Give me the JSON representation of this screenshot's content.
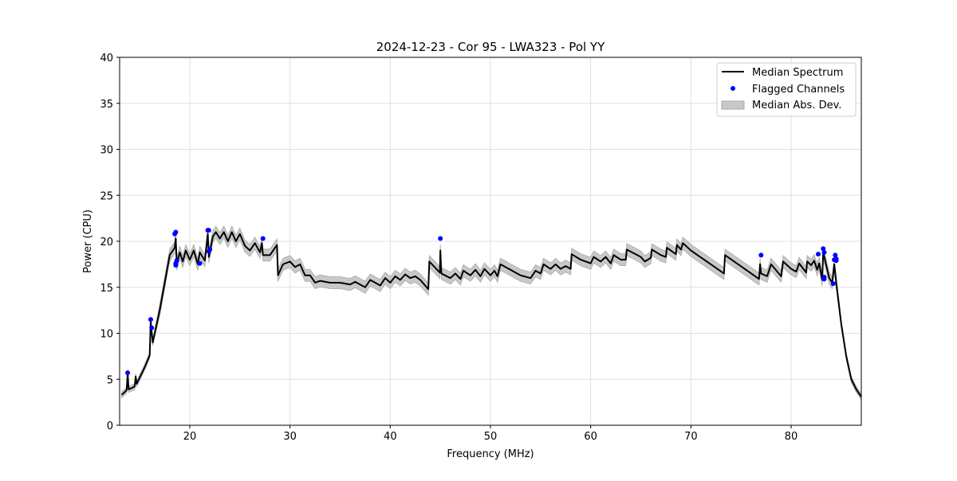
{
  "chart_data": {
    "type": "line",
    "title": "2024-12-23 - Cor 95 - LWA323 - Pol YY",
    "xlabel": "Frequency (MHz)",
    "ylabel": "Power (CPU)",
    "xlim": [
      13.0,
      87.0
    ],
    "ylim": [
      0,
      40
    ],
    "xticks": [
      20,
      30,
      40,
      50,
      60,
      70,
      80
    ],
    "yticks": [
      0,
      5,
      10,
      15,
      20,
      25,
      30,
      35,
      40
    ],
    "grid": true,
    "legend_position": "top-right",
    "legend": [
      "Median Spectrum",
      "Flagged Channels",
      "Median Abs. Dev."
    ],
    "colors": {
      "median": "#000000",
      "flagged": "#0000ff",
      "mad": "#c8c8c8"
    },
    "mad_halfwidth": 0.65,
    "median_spectrum": [
      [
        13.2,
        3.3
      ],
      [
        13.7,
        3.8
      ],
      [
        13.8,
        5.7
      ],
      [
        13.9,
        3.9
      ],
      [
        14.5,
        4.2
      ],
      [
        14.6,
        5.3
      ],
      [
        14.7,
        4.5
      ],
      [
        15.5,
        6.3
      ],
      [
        16,
        7.6
      ],
      [
        16.1,
        11.3
      ],
      [
        16.3,
        9
      ],
      [
        17,
        12.5
      ],
      [
        17.5,
        15.5
      ],
      [
        18,
        18.5
      ],
      [
        18.5,
        19.3
      ],
      [
        18.6,
        20.3
      ],
      [
        18.7,
        17.5
      ],
      [
        19,
        18.8
      ],
      [
        19.3,
        17.8
      ],
      [
        19.6,
        19
      ],
      [
        20,
        18
      ],
      [
        20.4,
        19
      ],
      [
        20.8,
        17.5
      ],
      [
        21,
        18.8
      ],
      [
        21.5,
        17.9
      ],
      [
        21.8,
        20.8
      ],
      [
        21.9,
        18.3
      ],
      [
        22.3,
        20.5
      ],
      [
        22.6,
        21
      ],
      [
        23,
        20.3
      ],
      [
        23.4,
        21
      ],
      [
        23.8,
        20
      ],
      [
        24.2,
        21
      ],
      [
        24.6,
        20
      ],
      [
        25,
        20.8
      ],
      [
        25.5,
        19.5
      ],
      [
        26,
        19
      ],
      [
        26.5,
        19.8
      ],
      [
        27,
        18.8
      ],
      [
        27.2,
        19.8
      ],
      [
        27.3,
        18.5
      ],
      [
        28,
        18.5
      ],
      [
        28.7,
        19.6
      ],
      [
        28.8,
        16.3
      ],
      [
        29.3,
        17.5
      ],
      [
        30,
        17.8
      ],
      [
        30.5,
        17.2
      ],
      [
        31,
        17.5
      ],
      [
        31.5,
        16.3
      ],
      [
        32,
        16.3
      ],
      [
        32.5,
        15.5
      ],
      [
        33,
        15.7
      ],
      [
        34,
        15.5
      ],
      [
        35,
        15.5
      ],
      [
        36,
        15.3
      ],
      [
        36.5,
        15.6
      ],
      [
        37.5,
        15.0
      ],
      [
        38,
        15.8
      ],
      [
        39,
        15.2
      ],
      [
        39.5,
        16
      ],
      [
        40,
        15.5
      ],
      [
        40.5,
        16.2
      ],
      [
        41,
        15.8
      ],
      [
        41.5,
        16.4
      ],
      [
        42,
        16.0
      ],
      [
        42.5,
        16.2
      ],
      [
        43,
        15.8
      ],
      [
        43.8,
        14.8
      ],
      [
        43.9,
        17.8
      ],
      [
        44.95,
        16.6
      ],
      [
        45,
        19
      ],
      [
        45.1,
        16.5
      ],
      [
        46,
        16.0
      ],
      [
        46.5,
        16.5
      ],
      [
        47,
        15.9
      ],
      [
        47.3,
        16.8
      ],
      [
        48,
        16.3
      ],
      [
        48.5,
        16.9
      ],
      [
        49,
        16.2
      ],
      [
        49.4,
        17
      ],
      [
        50,
        16.3
      ],
      [
        50.4,
        16.8
      ],
      [
        50.7,
        16.2
      ],
      [
        51,
        17.5
      ],
      [
        52,
        16.9
      ],
      [
        53,
        16.3
      ],
      [
        54,
        16.0
      ],
      [
        54.5,
        16.8
      ],
      [
        55,
        16.5
      ],
      [
        55.3,
        17.5
      ],
      [
        56,
        17.0
      ],
      [
        56.5,
        17.5
      ],
      [
        57,
        17.0
      ],
      [
        57.5,
        17.3
      ],
      [
        58,
        17.0
      ],
      [
        58.1,
        18.6
      ],
      [
        59,
        18.0
      ],
      [
        60,
        17.6
      ],
      [
        60.3,
        18.3
      ],
      [
        61,
        17.8
      ],
      [
        61.5,
        18.3
      ],
      [
        62,
        17.6
      ],
      [
        62.3,
        18.5
      ],
      [
        63,
        18
      ],
      [
        63.5,
        18.0
      ],
      [
        63.6,
        19.1
      ],
      [
        65,
        18.3
      ],
      [
        65.4,
        17.8
      ],
      [
        66,
        18.2
      ],
      [
        66.1,
        19.1
      ],
      [
        67,
        18.5
      ],
      [
        67.5,
        18.3
      ],
      [
        67.6,
        19.3
      ],
      [
        68.5,
        18.6
      ],
      [
        68.6,
        19.6
      ],
      [
        69,
        19.1
      ],
      [
        69.2,
        19.8
      ],
      [
        70,
        19
      ],
      [
        73.3,
        16.5
      ],
      [
        73.4,
        18.5
      ],
      [
        76.8,
        15.9
      ],
      [
        76.9,
        17.5
      ],
      [
        77,
        16.5
      ],
      [
        77.6,
        16.2
      ],
      [
        78,
        17.5
      ],
      [
        79,
        16.2
      ],
      [
        79.2,
        17.8
      ],
      [
        80,
        17.0
      ],
      [
        80.5,
        16.7
      ],
      [
        80.8,
        17.6
      ],
      [
        81.5,
        16.6
      ],
      [
        81.6,
        17.8
      ],
      [
        82,
        17.4
      ],
      [
        82.3,
        17.9
      ],
      [
        82.6,
        16.9
      ],
      [
        82.8,
        17.6
      ],
      [
        83.1,
        15.8
      ],
      [
        83.2,
        18.8
      ],
      [
        83.8,
        16.0
      ],
      [
        84.1,
        15.5
      ],
      [
        84.3,
        17.5
      ],
      [
        84.5,
        15.5
      ],
      [
        85,
        11
      ],
      [
        85.5,
        7.5
      ],
      [
        86,
        5
      ],
      [
        86.5,
        3.9
      ],
      [
        87,
        3.1
      ]
    ],
    "flagged_channels": [
      [
        13.8,
        5.7
      ],
      [
        16.1,
        11.5
      ],
      [
        16.2,
        10.6
      ],
      [
        18.5,
        20.8
      ],
      [
        18.6,
        21.0
      ],
      [
        18.6,
        17.6
      ],
      [
        18.7,
        17.9
      ],
      [
        18.6,
        17.4
      ],
      [
        21,
        17.6
      ],
      [
        21.8,
        21.2
      ],
      [
        21.9,
        21.2
      ],
      [
        21.9,
        18.9
      ],
      [
        22,
        19.1
      ],
      [
        27.3,
        20.3
      ],
      [
        45,
        20.3
      ],
      [
        77,
        18.5
      ],
      [
        82.7,
        18.6
      ],
      [
        83.2,
        19.2
      ],
      [
        83.3,
        18.8
      ],
      [
        83.3,
        16.1
      ],
      [
        83.3,
        15.9
      ],
      [
        84.2,
        15.4
      ],
      [
        84.3,
        18.0
      ],
      [
        84.4,
        18.5
      ],
      [
        84.5,
        17.9
      ],
      [
        84.5,
        18.1
      ]
    ]
  }
}
